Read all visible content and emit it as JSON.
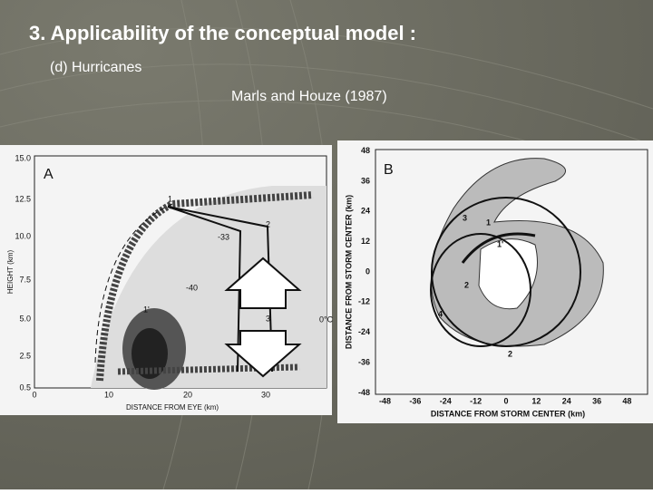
{
  "header": {
    "title": "3. Applicability of the conceptual model :",
    "subtitle": "(d) Hurricanes",
    "citation": "Marls and Houze (1987)"
  },
  "figures": [
    {
      "label": "A",
      "y_axis_label": "HEIGHT (km)",
      "x_axis_label": "DISTANCE FROM EYE (km)",
      "y_ticks": [
        "15.0",
        "12.5",
        "10.0",
        "7.5",
        "5.0",
        "2.5",
        "0.5"
      ],
      "x_ticks": [
        "0",
        "10",
        "20",
        "30"
      ],
      "annotations": [
        "1",
        "2",
        "-33",
        "-40",
        "1'",
        "3",
        "0°C"
      ]
    },
    {
      "label": "B",
      "y_axis_label": "DISTANCE FROM STORM CENTER (km)",
      "x_axis_label": "DISTANCE FROM STORM CENTER (km)",
      "y_ticks": [
        48,
        36,
        24,
        12,
        0,
        -12,
        -24,
        -36,
        -48
      ],
      "x_ticks": [
        -48,
        -36,
        -24,
        -12,
        0,
        12,
        24,
        36,
        48
      ],
      "annotations": [
        "1",
        "1'",
        "2",
        "3",
        "4",
        "2"
      ]
    }
  ]
}
